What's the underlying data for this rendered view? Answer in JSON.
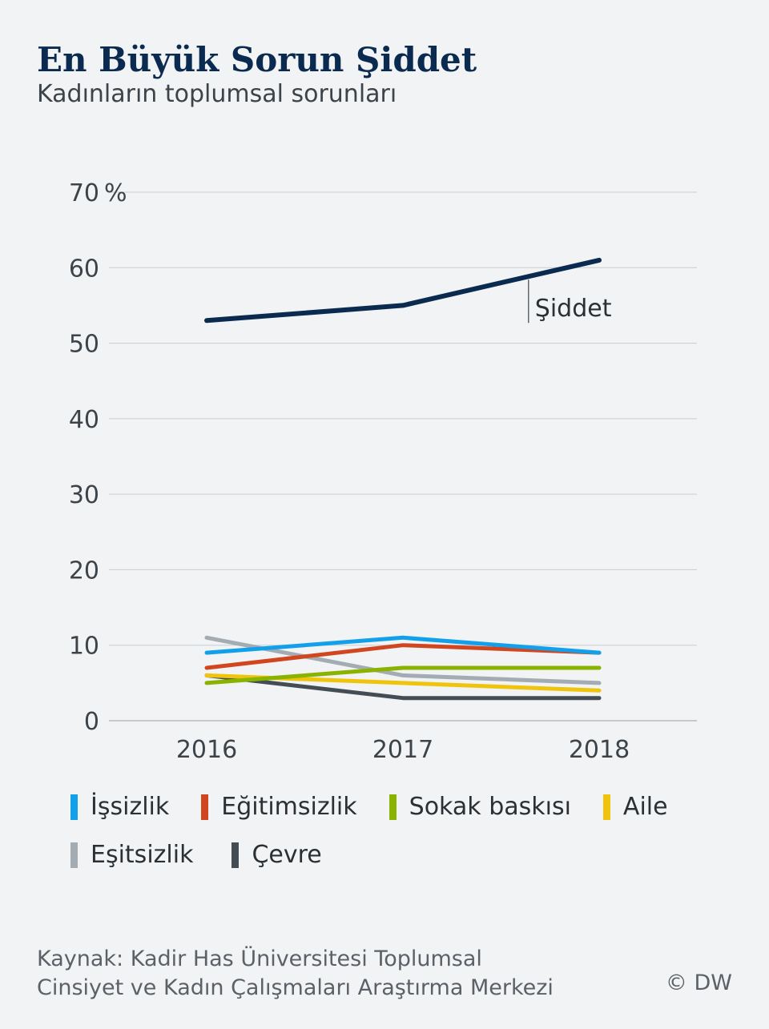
{
  "header": {
    "title": "En Büyük Sorun Şiddet",
    "subtitle": "Kadınların toplumsal sorunları"
  },
  "chart_data": {
    "type": "line",
    "x": [
      "2016",
      "2017",
      "2018"
    ],
    "ylim": [
      0,
      70
    ],
    "yticks": [
      0,
      10,
      20,
      30,
      40,
      50,
      60,
      70
    ],
    "ytick_labels": [
      "0",
      "10",
      "20",
      "30",
      "40",
      "50",
      "60",
      "70"
    ],
    "y_unit": "%",
    "grid": true,
    "legend_position": "bottom",
    "series": [
      {
        "name": "Şiddet",
        "values": [
          53,
          55,
          61
        ],
        "color": "#0b2a4f"
      },
      {
        "name": "İşsizlik",
        "values": [
          9,
          11,
          9
        ],
        "color": "#13a0ea"
      },
      {
        "name": "Eğitimsizlik",
        "values": [
          7,
          10,
          9
        ],
        "color": "#d2461f"
      },
      {
        "name": "Sokak baskısı",
        "values": [
          5,
          7,
          7
        ],
        "color": "#8ab300"
      },
      {
        "name": "Aile",
        "values": [
          6,
          5,
          4
        ],
        "color": "#f0c40c"
      },
      {
        "name": "Eşitsizlik",
        "values": [
          11,
          6,
          5
        ],
        "color": "#a4acb3"
      },
      {
        "name": "Çevre",
        "values": [
          6,
          3,
          3
        ],
        "color": "#444c54"
      }
    ],
    "annotation": {
      "text": "Şiddet",
      "series": "Şiddet"
    }
  },
  "legend": {
    "row1": [
      {
        "label": "İşsizlik",
        "color": "#13a0ea"
      },
      {
        "label": "Eğitimsizlik",
        "color": "#d2461f"
      },
      {
        "label": "Sokak baskısı",
        "color": "#8ab300"
      },
      {
        "label": "Aile",
        "color": "#f0c40c"
      }
    ],
    "row2": [
      {
        "label": "Eşitsizlik",
        "color": "#a4acb3"
      },
      {
        "label": "Çevre",
        "color": "#444c54"
      }
    ]
  },
  "footer": {
    "source_line1": "Kaynak: Kadir Has Üniversitesi Toplumsal",
    "source_line2": "Cinsiyet ve Kadın Çalışmaları Araştırma Merkezi",
    "credit": "© DW"
  }
}
